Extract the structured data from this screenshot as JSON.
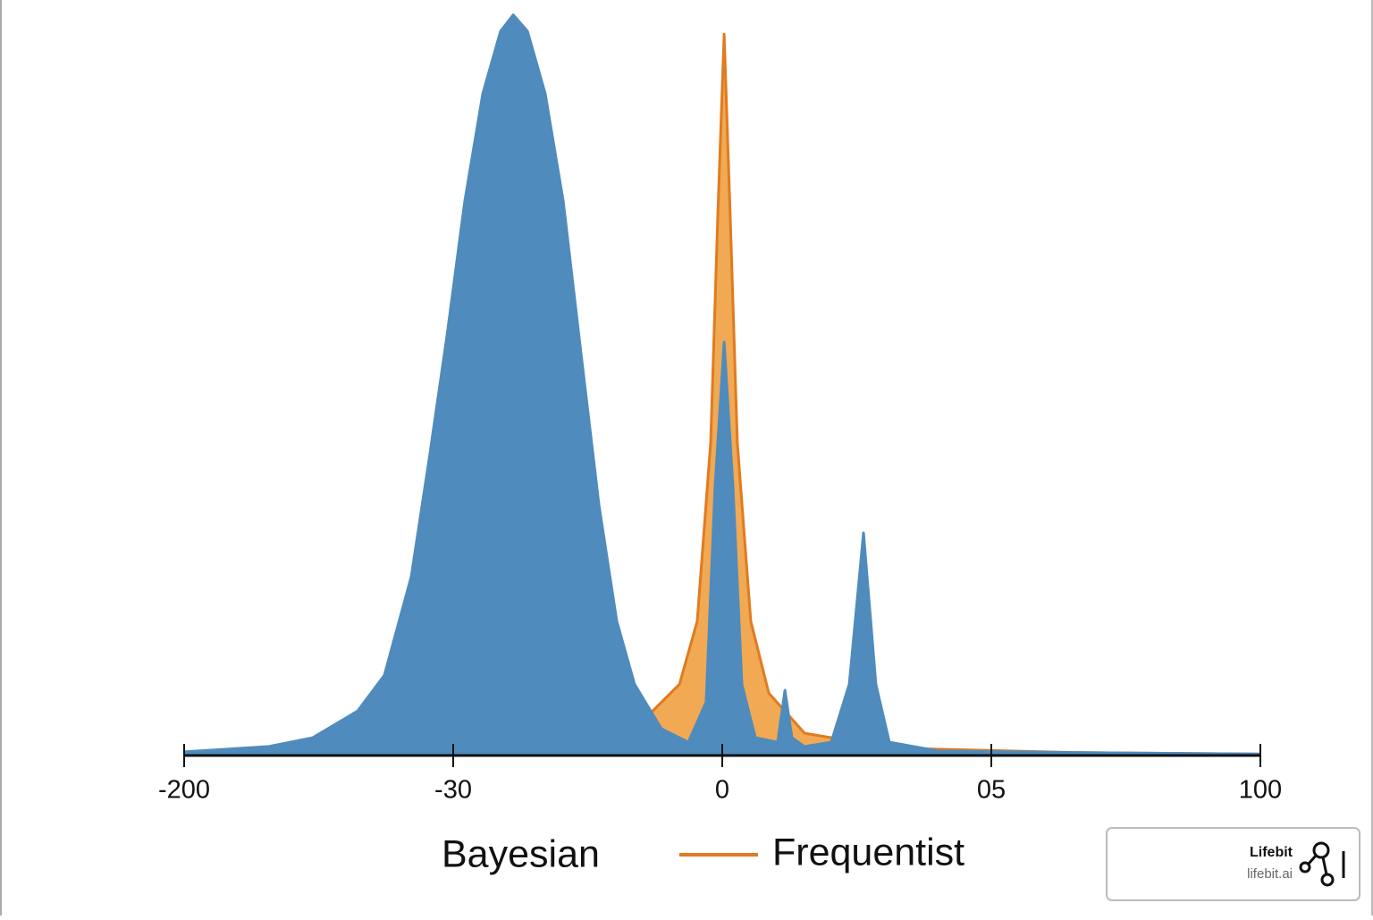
{
  "chart_data": {
    "type": "area",
    "xlim": [
      0,
      4
    ],
    "xticks": [
      {
        "value": 0,
        "label": "-200"
      },
      {
        "value": 1,
        "label": "-30"
      },
      {
        "value": 2,
        "label": "0"
      },
      {
        "value": 3,
        "label": "05"
      },
      {
        "value": 4,
        "label": "100"
      }
    ],
    "ylim": [
      0,
      1
    ],
    "series": [
      {
        "name": "Bayesian",
        "color": "#4f8bbd",
        "x": [
          0,
          0.312,
          0.478,
          0.645,
          0.744,
          0.844,
          0.91,
          0.977,
          1.043,
          1.11,
          1.176,
          1.223,
          1.276,
          1.342,
          1.409,
          1.475,
          1.542,
          1.608,
          1.674,
          1.774,
          1.874,
          1.94,
          1.973,
          2.007,
          2.04,
          2.073,
          2.123,
          2.206,
          2.233,
          2.259,
          2.306,
          2.405,
          2.472,
          2.525,
          2.571,
          2.621,
          2.804,
          3.302,
          4
        ],
        "values": [
          0.005,
          0.012,
          0.024,
          0.06,
          0.108,
          0.241,
          0.398,
          0.566,
          0.747,
          0.892,
          0.976,
          0.998,
          0.976,
          0.892,
          0.747,
          0.542,
          0.337,
          0.181,
          0.096,
          0.036,
          0.018,
          0.072,
          0.361,
          0.557,
          0.361,
          0.096,
          0.024,
          0.018,
          0.088,
          0.024,
          0.012,
          0.018,
          0.096,
          0.3,
          0.096,
          0.018,
          0.006,
          0.004,
          0.002
        ]
      },
      {
        "name": "Frequentist",
        "color": "#f0a040",
        "x": [
          0,
          0.977,
          1.475,
          1.708,
          1.841,
          1.907,
          1.957,
          1.983,
          2.007,
          2.03,
          2.056,
          2.106,
          2.173,
          2.306,
          2.638,
          3.302,
          4
        ],
        "values": [
          0.001,
          0.004,
          0.018,
          0.048,
          0.096,
          0.181,
          0.422,
          0.723,
          0.972,
          0.723,
          0.422,
          0.181,
          0.084,
          0.03,
          0.01,
          0.004,
          0.002
        ]
      }
    ]
  },
  "watermark": {
    "title": "Lifebit",
    "url": "lifebit.ai"
  }
}
